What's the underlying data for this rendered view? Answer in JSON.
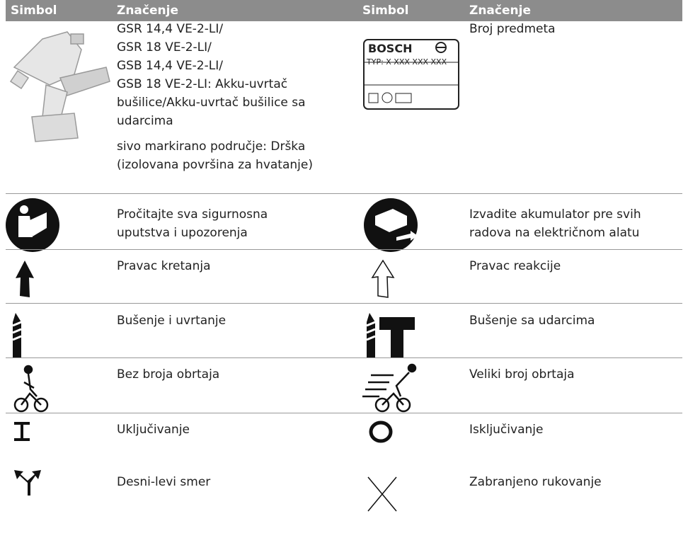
{
  "header": {
    "cells": [
      "Simbol",
      "Značenje",
      "Simbol",
      "Značenje"
    ]
  },
  "rows": [
    {
      "left": {
        "paragraphs": [
          [
            "GSR 14,4 VE-2-LI/",
            "GSR 18 VE-2-LI/",
            "GSB 14,4 VE-2-LI/",
            "GSB 18 VE-2-LI: Akku-uvrtač",
            "bušilice/Akku-uvrtač bušilice sa",
            "udarcima"
          ],
          [
            "sivo markirano područje: Drška",
            "(izolovana površina za hvatanje)"
          ]
        ]
      },
      "right": {
        "label": {
          "brand": "BOSCH",
          "type": "TYP:  X XXX XXX XXX"
        },
        "paragraphs": [
          [
            "Broj predmeta"
          ]
        ]
      }
    },
    {
      "left": {
        "paragraphs": [
          [
            "Pročitajte sva sigurnosna",
            "uputstva i upozorenja"
          ]
        ]
      },
      "right": {
        "paragraphs": [
          [
            "Izvadite akumulator pre svih",
            "radova na električnom alatu"
          ]
        ]
      }
    },
    {
      "left": {
        "paragraphs": [
          [
            "Pravac kretanja"
          ]
        ]
      },
      "right": {
        "paragraphs": [
          [
            "Pravac reakcije"
          ]
        ]
      }
    },
    {
      "left": {
        "paragraphs": [
          [
            "Bušenje i uvrtanje"
          ]
        ]
      },
      "right": {
        "paragraphs": [
          [
            "Bušenje sa udarcima"
          ]
        ]
      }
    },
    {
      "left": {
        "paragraphs": [
          [
            "Bez broja obrtaja"
          ]
        ]
      },
      "right": {
        "paragraphs": [
          [
            "Veliki broj obrtaja"
          ]
        ]
      }
    },
    {
      "left": {
        "paragraphs": [
          [
            "Uključivanje"
          ]
        ]
      },
      "right": {
        "paragraphs": [
          [
            "Isključivanje"
          ]
        ]
      }
    },
    {
      "left": {
        "paragraphs": [
          [
            "Desni-levi smer"
          ]
        ]
      },
      "right": {
        "paragraphs": [
          [
            "Zabranjeno rukovanje"
          ]
        ]
      }
    }
  ]
}
